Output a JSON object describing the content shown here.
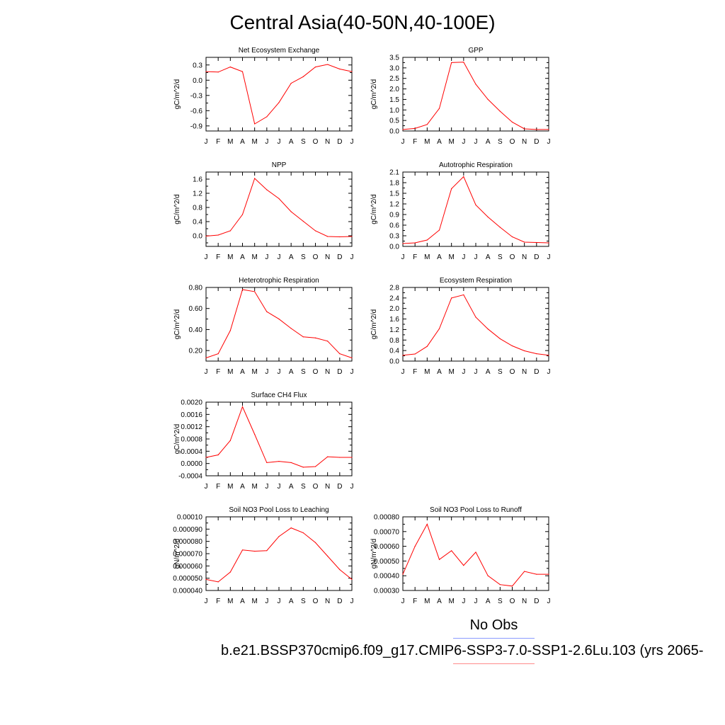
{
  "title": "Central Asia(40-50N,40-100E)",
  "legend": {
    "obs_label": "No Obs",
    "case_label": "b.e21.BSSP370cmip6.f09_g17.CMIP6-SSP3-7.0-SSP1-2.6Lu.103 (yrs 2065-",
    "obs_color": "#8a9bff",
    "case_color": "#ff8a8a"
  },
  "line_color": "#ff0000",
  "months": [
    "J",
    "F",
    "M",
    "A",
    "M",
    "J",
    "J",
    "A",
    "S",
    "O",
    "N",
    "D",
    "J"
  ],
  "chart_data": [
    {
      "type": "line",
      "title": "Net Ecosystem Exchange",
      "ylabel": "gC/m^2/d",
      "ylim": [
        -1.0,
        0.45
      ],
      "yticks": [
        0.3,
        0.0,
        -0.3,
        -0.6,
        -0.9
      ],
      "yticklabels": [
        "0.3",
        "0.0",
        "-0.3",
        "-0.6",
        "-0.9"
      ],
      "values": [
        0.17,
        0.16,
        0.26,
        0.17,
        -0.86,
        -0.72,
        -0.44,
        -0.06,
        0.07,
        0.26,
        0.31,
        0.22,
        0.17
      ]
    },
    {
      "type": "line",
      "title": "GPP",
      "ylabel": "gC/m^2/d",
      "ylim": [
        0.0,
        3.5
      ],
      "yticks": [
        3.5,
        3.0,
        2.5,
        2.0,
        1.5,
        1.0,
        0.5,
        0.0
      ],
      "yticklabels": [
        "3.5",
        "3.0",
        "2.5",
        "2.0",
        "1.5",
        "1.0",
        "0.5",
        "0.0"
      ],
      "values": [
        0.07,
        0.12,
        0.31,
        1.07,
        3.25,
        3.27,
        2.22,
        1.5,
        0.94,
        0.42,
        0.1,
        0.07,
        0.07
      ]
    },
    {
      "type": "line",
      "title": "NPP",
      "ylabel": "gC/m^2/d",
      "ylim": [
        -0.3,
        1.8
      ],
      "yticks": [
        1.6,
        1.2,
        0.8,
        0.4,
        0.0
      ],
      "yticklabels": [
        "1.6",
        "1.2",
        "0.8",
        "0.4",
        "0.0"
      ],
      "values": [
        -0.01,
        0.02,
        0.14,
        0.6,
        1.62,
        1.3,
        1.05,
        0.68,
        0.41,
        0.14,
        -0.02,
        -0.03,
        -0.02
      ]
    },
    {
      "type": "line",
      "title": "Autotrophic Respiration",
      "ylabel": "gC/m^2/d",
      "ylim": [
        0.0,
        2.1
      ],
      "yticks": [
        2.1,
        1.8,
        1.5,
        1.2,
        0.9,
        0.6,
        0.3,
        0.0
      ],
      "yticklabels": [
        "2.1",
        "1.8",
        "1.5",
        "1.2",
        "0.9",
        "0.6",
        "0.3",
        "0.0"
      ],
      "values": [
        0.08,
        0.1,
        0.18,
        0.46,
        1.63,
        1.97,
        1.17,
        0.83,
        0.54,
        0.27,
        0.12,
        0.11,
        0.1
      ]
    },
    {
      "type": "line",
      "title": "Heterotrophic Respiration",
      "ylabel": "gC/m^2/d",
      "ylim": [
        0.1,
        0.8
      ],
      "yticks": [
        0.8,
        0.6,
        0.4,
        0.2
      ],
      "yticklabels": [
        "0.80",
        "0.60",
        "0.40",
        "0.20"
      ],
      "values": [
        0.13,
        0.17,
        0.39,
        0.78,
        0.76,
        0.57,
        0.5,
        0.41,
        0.33,
        0.32,
        0.29,
        0.17,
        0.13
      ]
    },
    {
      "type": "line",
      "title": "Ecosystem Respiration",
      "ylabel": "gC/m^2/d",
      "ylim": [
        0.0,
        2.8
      ],
      "yticks": [
        2.8,
        2.4,
        2.0,
        1.6,
        1.2,
        0.8,
        0.4,
        0.0
      ],
      "yticklabels": [
        "2.8",
        "2.4",
        "2.0",
        "1.6",
        "1.2",
        "0.8",
        "0.4",
        "0.0"
      ],
      "values": [
        0.22,
        0.27,
        0.56,
        1.23,
        2.4,
        2.52,
        1.67,
        1.22,
        0.85,
        0.58,
        0.39,
        0.28,
        0.22
      ]
    },
    {
      "type": "line",
      "title": "Surface CH4 Flux",
      "ylabel": "gC/m^2/d",
      "ylim": [
        -0.0004,
        0.002
      ],
      "yticks": [
        0.002,
        0.0016,
        0.0012,
        0.0008,
        0.0004,
        0.0,
        -0.0004
      ],
      "yticklabels": [
        "0.0020",
        "0.0016",
        "0.0012",
        "0.0008",
        "0.0004",
        "0.0000",
        "-0.0004"
      ],
      "values": [
        0.0002,
        0.00028,
        0.00075,
        0.00185,
        0.00095,
        3e-05,
        7e-05,
        3e-05,
        -0.00012,
        -0.0001,
        0.00022,
        0.0002,
        0.0002
      ]
    },
    {
      "type": "line",
      "title": "Soil NO3 Pool Loss to Leaching",
      "ylabel": "gN/m^2/d",
      "ylim": [
        4e-05,
        0.0001
      ],
      "yticks": [
        0.0001,
        9e-05,
        8e-05,
        7e-05,
        6e-05,
        5e-05,
        4e-05
      ],
      "yticklabels": [
        "0.00010",
        "0.000090",
        "0.000080",
        "0.000070",
        "0.000060",
        "0.000050",
        "0.000040"
      ],
      "values": [
        4.9e-05,
        4.7e-05,
        5.5e-05,
        7.3e-05,
        7.2e-05,
        7.25e-05,
        8.4e-05,
        9.1e-05,
        8.7e-05,
        7.9e-05,
        6.8e-05,
        5.7e-05,
        4.9e-05
      ]
    },
    {
      "type": "line",
      "title": "Soil NO3 Pool Loss to Runoff",
      "ylabel": "gN/m^2/d",
      "ylim": [
        0.0003,
        0.0008
      ],
      "yticks": [
        0.0008,
        0.0007,
        0.0006,
        0.0005,
        0.0004,
        0.0003
      ],
      "yticklabels": [
        "0.00080",
        "0.00070",
        "0.00060",
        "0.00050",
        "0.00040",
        "0.00030"
      ],
      "values": [
        0.00041,
        0.0006,
        0.00075,
        0.00051,
        0.00057,
        0.00047,
        0.00056,
        0.0004,
        0.00034,
        0.00033,
        0.00043,
        0.00041,
        0.00041
      ]
    }
  ]
}
